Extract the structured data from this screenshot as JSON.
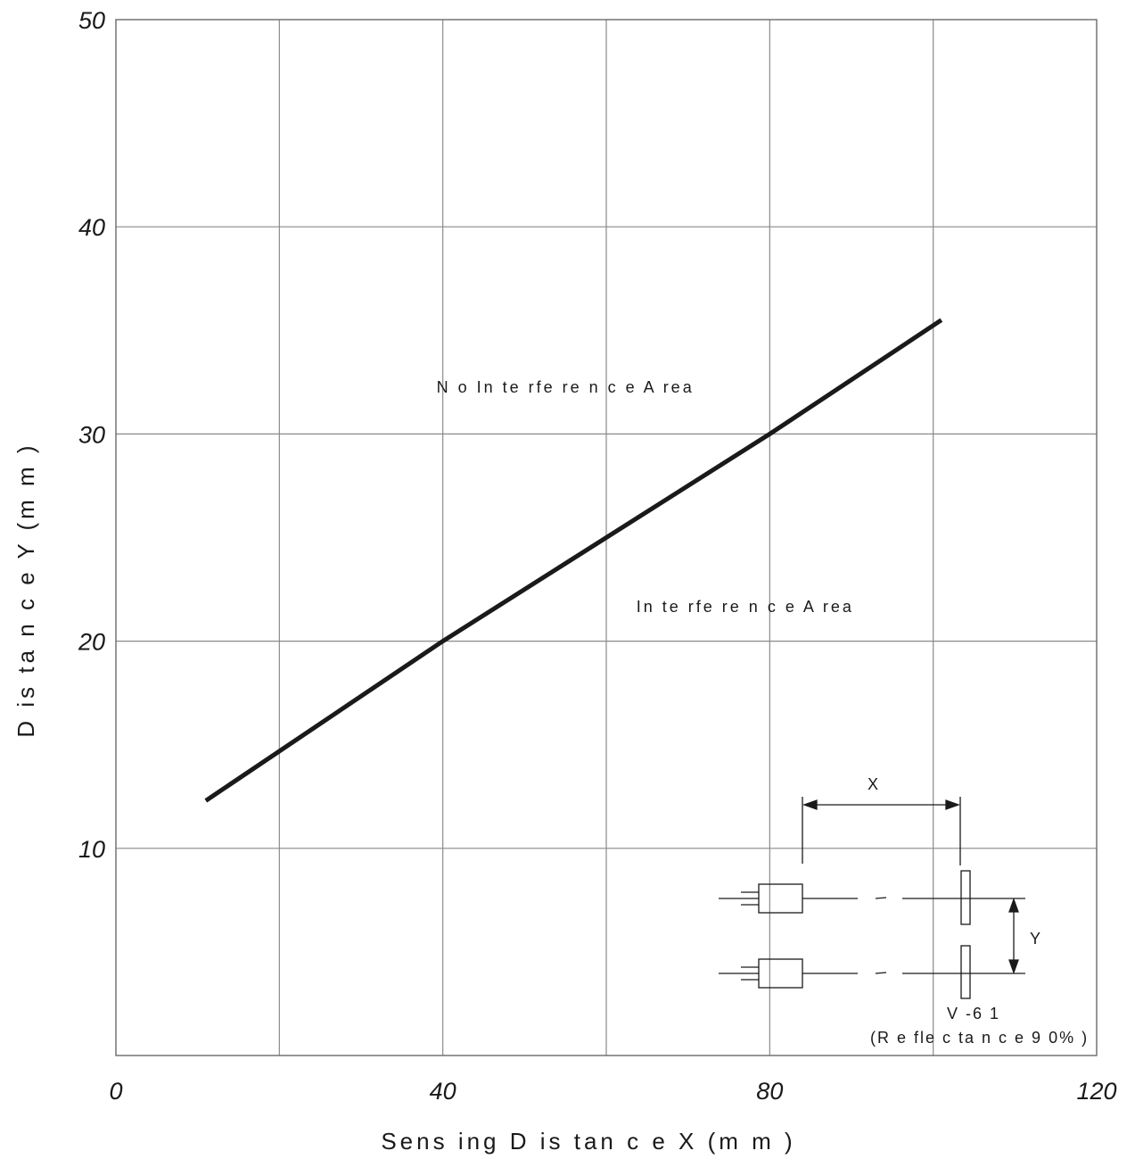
{
  "chart_data": {
    "type": "line",
    "title": "",
    "xlabel": "Sens ing  D is tan c e  X (m m )",
    "ylabel": "D is ta n c e  Y  (m m )",
    "xlim": [
      0,
      120
    ],
    "ylim": [
      0,
      50
    ],
    "x_ticks": [
      0,
      20,
      40,
      60,
      80,
      100,
      120
    ],
    "y_ticks": [
      0,
      10,
      20,
      30,
      40,
      50
    ],
    "x_tick_labels": [
      {
        "value": 0,
        "label": "0"
      },
      {
        "value": 40,
        "label": "40"
      },
      {
        "value": 80,
        "label": "80"
      },
      {
        "value": 120,
        "label": "120"
      }
    ],
    "y_tick_labels": [
      {
        "value": 10,
        "label": "10"
      },
      {
        "value": 20,
        "label": "20"
      },
      {
        "value": 30,
        "label": "30"
      },
      {
        "value": 40,
        "label": "40"
      },
      {
        "value": 50,
        "label": "50"
      }
    ],
    "grid": true,
    "series": [
      {
        "x": [
          11,
          40,
          80,
          101
        ],
        "y": [
          12.3,
          20,
          30,
          35.5
        ]
      }
    ],
    "annotations": [
      {
        "text": "N o  In te rfe re n c e  A rea",
        "x": 55,
        "y": 32
      },
      {
        "text": "In te rfe re n c e  A rea",
        "x": 77,
        "y": 21.4
      }
    ],
    "line_color": "#1a1a1a"
  },
  "inset": {
    "x_label": "X",
    "y_label": "Y",
    "target_label": "V -6 1",
    "reflectance_label": "(R e fle c ta n c e  9 0% )"
  }
}
